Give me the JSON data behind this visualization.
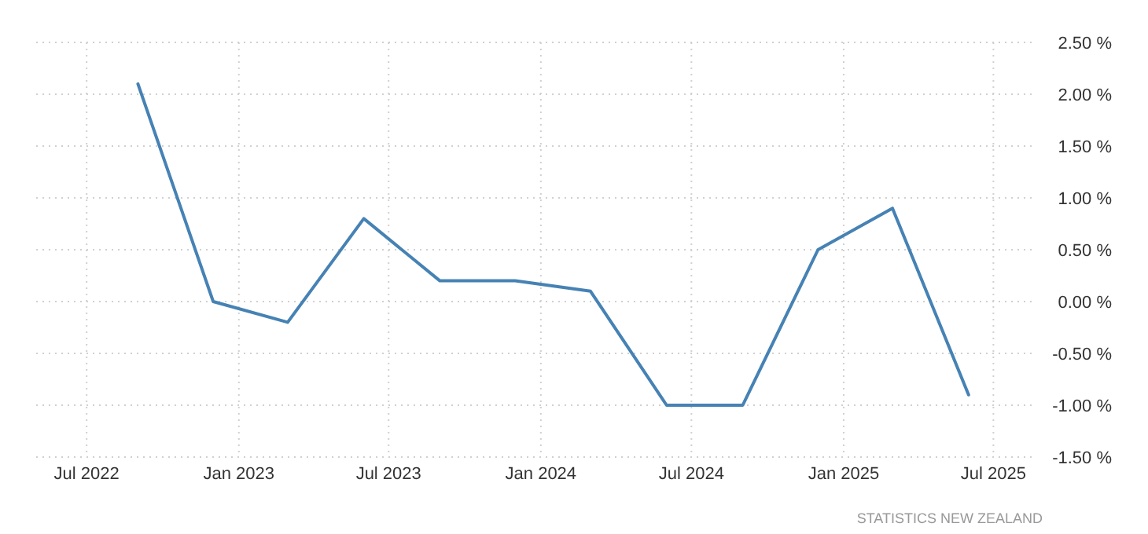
{
  "chart_data": {
    "type": "line",
    "x": [
      "2022-09",
      "2022-12",
      "2023-03",
      "2023-06",
      "2023-09",
      "2023-12",
      "2024-03",
      "2024-06",
      "2024-09",
      "2024-12",
      "2025-03",
      "2025-06"
    ],
    "series": [
      {
        "color": "#4682b4",
        "values": [
          2.1,
          0.0,
          -0.2,
          0.8,
          0.2,
          0.2,
          0.1,
          -1.0,
          -1.0,
          0.5,
          0.9,
          -0.9
        ]
      }
    ],
    "xlim": [
      "2022-05-01",
      "2025-08-20"
    ],
    "xticks": [
      {
        "value": "2022-07",
        "label": "Jul 2022"
      },
      {
        "value": "2023-01",
        "label": "Jan 2023"
      },
      {
        "value": "2023-07",
        "label": "Jul 2023"
      },
      {
        "value": "2024-01",
        "label": "Jan 2024"
      },
      {
        "value": "2024-07",
        "label": "Jul 2024"
      },
      {
        "value": "2025-01",
        "label": "Jan 2025"
      },
      {
        "value": "2025-07",
        "label": "Jul 2025"
      }
    ],
    "ylim": [
      -1.5,
      2.5
    ],
    "yticks": [
      {
        "value": -1.5,
        "label": "-1.50 %"
      },
      {
        "value": -1,
        "label": "-1.00 %"
      },
      {
        "value": -0.5,
        "label": "-0.50 %"
      },
      {
        "value": 0,
        "label": "0.00 %"
      },
      {
        "value": 0.5,
        "label": "0.50 %"
      },
      {
        "value": 1,
        "label": "1.00 %"
      },
      {
        "value": 1.5,
        "label": "1.50 %"
      },
      {
        "value": 2,
        "label": "2.00 %"
      },
      {
        "value": 2.5,
        "label": "2.50 %"
      }
    ],
    "grid": true,
    "line_style": "solid",
    "marker": "none",
    "annotations": [
      "STATISTICS NEW ZEALAND"
    ]
  }
}
